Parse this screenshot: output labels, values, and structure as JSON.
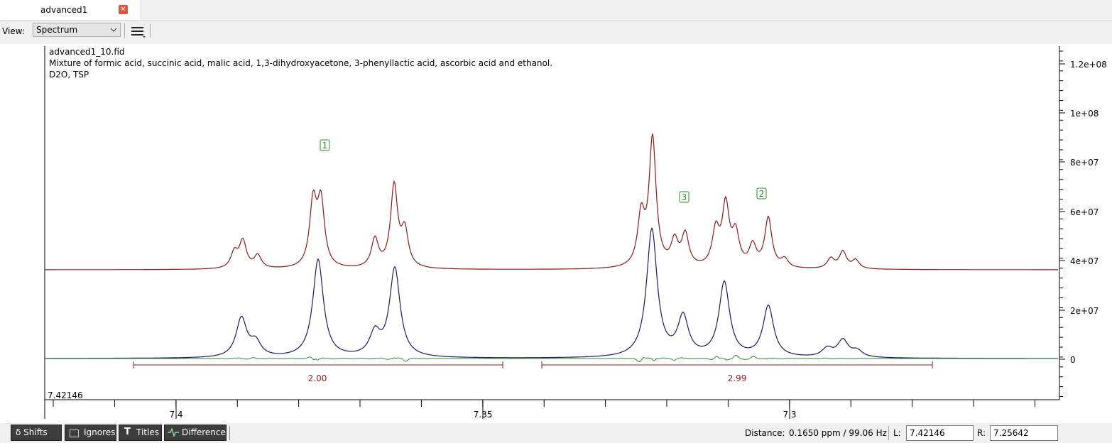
{
  "tab": {
    "title": "advanced1"
  },
  "toolbar": {
    "view_label": "View:",
    "view_value": "Spectrum"
  },
  "spectrum": {
    "file": "advanced1_10.fid",
    "description": "Mixture of formic acid, succinic acid, malic acid, 1,3-dihydroxyacetone, 3-phenyllactic acid, ascorbic acid and ethanol.",
    "solvent": "D2O, TSP",
    "y_ticks": [
      "1.2e+08",
      "1e+08",
      "8e+07",
      "6e+07",
      "4e+07",
      "2e+07",
      "0"
    ],
    "x_ticks": [
      "7.4",
      "7.35",
      "7.3"
    ],
    "cursor": "7.42146",
    "peaks": [
      "1",
      "3",
      "2"
    ],
    "integrals": [
      "2.00",
      "2.99"
    ]
  },
  "bottom": {
    "buttons": [
      "δ Shifts",
      "Ignores",
      "Titles",
      "Difference"
    ],
    "distance_label": "Distance:",
    "distance": "0.1650 ppm / 99.06 Hz",
    "l_label": "L:",
    "l_value": "7.42146",
    "r_label": "R:",
    "r_value": "7.25642"
  }
}
